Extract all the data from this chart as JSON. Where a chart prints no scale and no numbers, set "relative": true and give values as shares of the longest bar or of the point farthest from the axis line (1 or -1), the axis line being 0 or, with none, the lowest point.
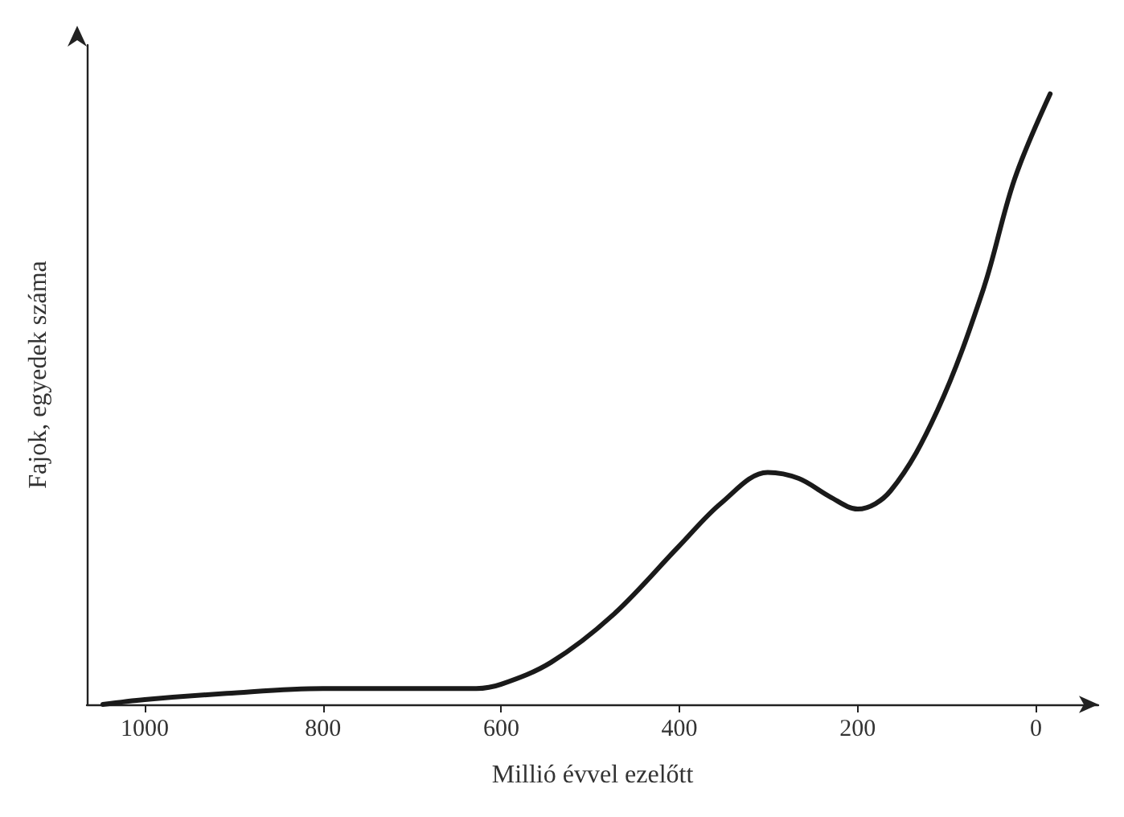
{
  "chart_data": {
    "type": "line",
    "xlabel": "Millió évvel ezelőtt",
    "ylabel": "Fajok, egyedek száma",
    "relative": true,
    "xlim": [
      1065,
      -70
    ],
    "xticks": [
      1000,
      800,
      600,
      400,
      200,
      0
    ],
    "grid": false,
    "marker": "none",
    "line_style": "solid",
    "series": [
      {
        "color": "#1a1a1a",
        "x": [
          1047,
          1000,
          908,
          800,
          698,
          628,
          600,
          544,
          475,
          400,
          353,
          301,
          266,
          231,
          200,
          163,
          111,
          59,
          24,
          -16
        ],
        "values": [
          0,
          0.008,
          0.018,
          0.026,
          0.026,
          0.026,
          0.033,
          0.069,
          0.146,
          0.26,
          0.33,
          0.38,
          0.37,
          0.34,
          0.32,
          0.35,
          0.48,
          0.68,
          0.86,
          1.0
        ]
      }
    ]
  }
}
